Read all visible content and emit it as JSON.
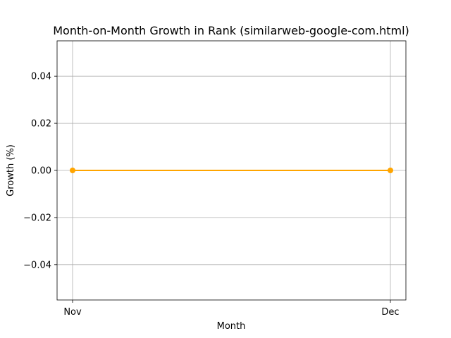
{
  "chart_data": {
    "type": "line",
    "title": "Month-on-Month Growth in Rank (similarweb-google-com.html)",
    "xlabel": "Month",
    "ylabel": "Growth (%)",
    "categories": [
      "Nov",
      "Dec"
    ],
    "series": [
      {
        "values": [
          0.0,
          0.0
        ],
        "color": "#ffa500",
        "marker": "circle"
      }
    ],
    "ylim": [
      -0.055,
      0.055
    ],
    "yticks": [
      -0.04,
      -0.02,
      0.0,
      0.02,
      0.04
    ],
    "ytick_labels": [
      "−0.04",
      "−0.02",
      "0.00",
      "0.02",
      "0.04"
    ],
    "grid": true,
    "legend": "none"
  }
}
